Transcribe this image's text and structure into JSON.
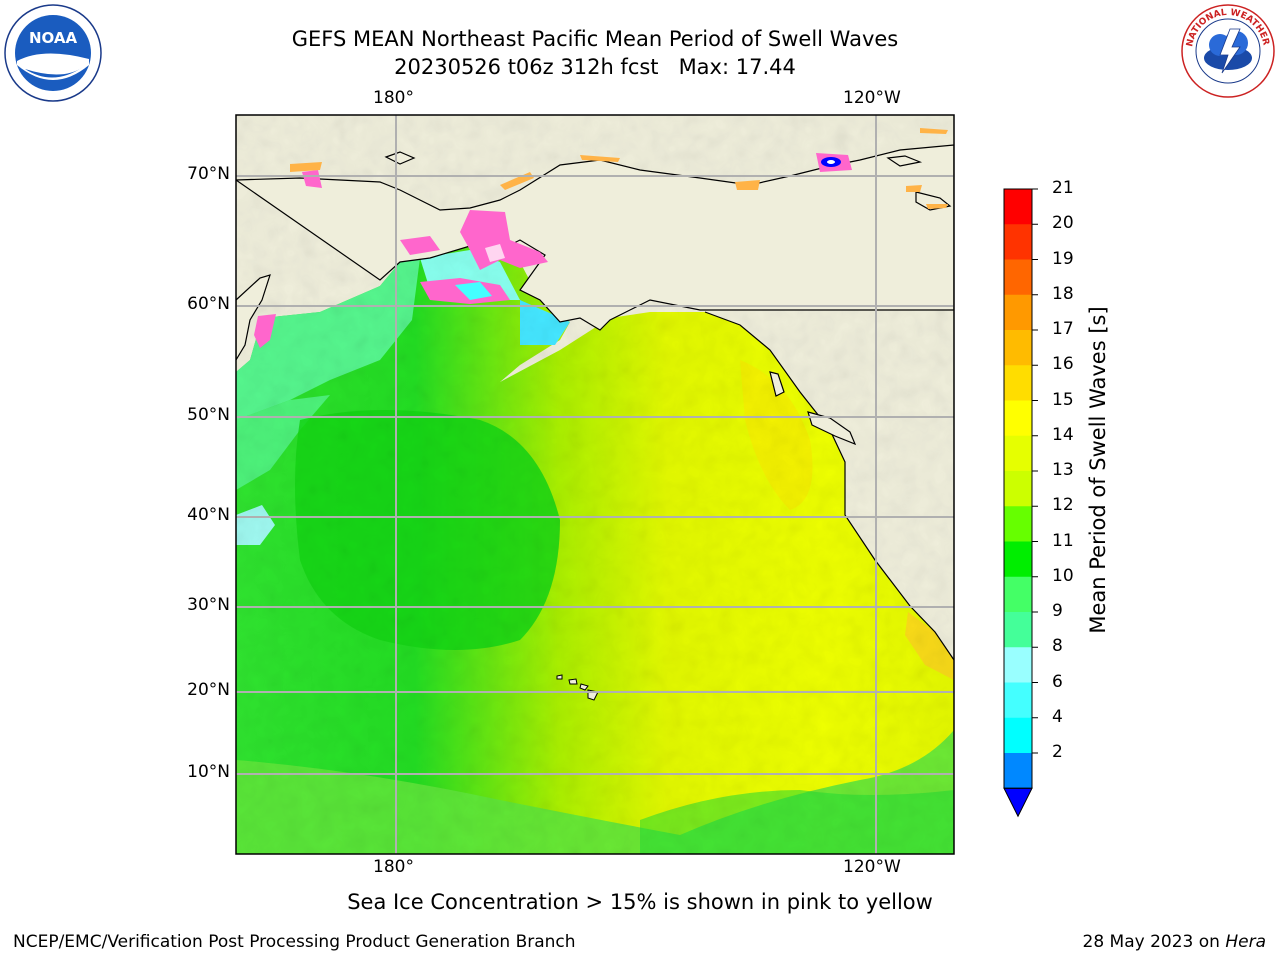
{
  "title": {
    "line1": "GEFS MEAN Northeast Pacific Mean Period of Swell Waves",
    "line2": "20230526 t06z 312h fcst   Max: 17.44"
  },
  "logos": {
    "noara": {
      "icon": "noaa-logo",
      "text": "NOAA",
      "ring_text": "NATIONAL OCEANIC AND ATMOSPHERIC ADMINISTRATION · U.S. DEPARTMENT OF COMMERCE"
    },
    "nws": {
      "icon": "nws-logo",
      "ring_text": "NATIONAL WEATHER SERVICE"
    }
  },
  "map": {
    "lon_labels": [
      "180°",
      "120°W"
    ],
    "lat_labels": [
      "70°N",
      "60°N",
      "50°N",
      "40°N",
      "30°N",
      "20°N",
      "10°N"
    ],
    "colors": {
      "land": "#efeedb",
      "grid": "#b0b0b0",
      "coast": "#000000",
      "ice_pink": "#ff66cc",
      "ice_orange": "#ffb347"
    }
  },
  "colorbar": {
    "label": "Mean Period of Swell Waves [s]",
    "ticks": [
      "21",
      "20",
      "19",
      "18",
      "17",
      "16",
      "15",
      "14",
      "13",
      "12",
      "11",
      "10",
      "9",
      "8",
      "6",
      "4",
      "2"
    ],
    "colors": [
      "#ff0000",
      "#ff3300",
      "#ff6600",
      "#ff9900",
      "#ffbb00",
      "#ffdd00",
      "#ffff00",
      "#e6ff00",
      "#ccff00",
      "#66ff00",
      "#00ee00",
      "#44ff66",
      "#44ff99",
      "#99ffff",
      "#44ffff",
      "#00ffff",
      "#0088ff"
    ],
    "extend_color": "#0000ff"
  },
  "note": "Sea Ice Concentration > 15% is shown in pink to yellow",
  "footer": {
    "left": "NCEP/EMC/Verification Post Processing Product Generation Branch",
    "right_prefix": "28 May 2023 on",
    "right_machine": "Hera"
  }
}
